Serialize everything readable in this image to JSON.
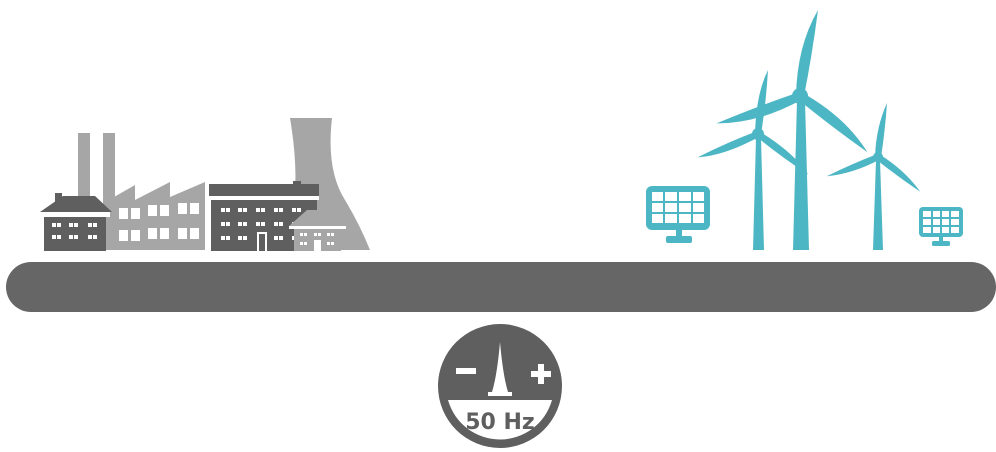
{
  "gauge": {
    "frequency_label": "50 Hz",
    "minus_symbol": "−",
    "plus_symbol": "+"
  },
  "colors": {
    "grid_bar": "#666666",
    "demand_dark": "#5f5f5f",
    "demand_light": "#a6a6a6",
    "renewable": "#4db6c4",
    "gauge_bg": "#5f5f5f",
    "gauge_face": "#ffffff"
  },
  "icons": {
    "left_group": [
      "house-icon",
      "factory-icon",
      "apartment-building-icon",
      "small-house-icon",
      "cooling-tower-icon"
    ],
    "right_group": [
      "solar-panel-icon",
      "wind-turbine-icon",
      "wind-turbine-icon",
      "wind-turbine-icon",
      "solar-panel-icon"
    ]
  }
}
